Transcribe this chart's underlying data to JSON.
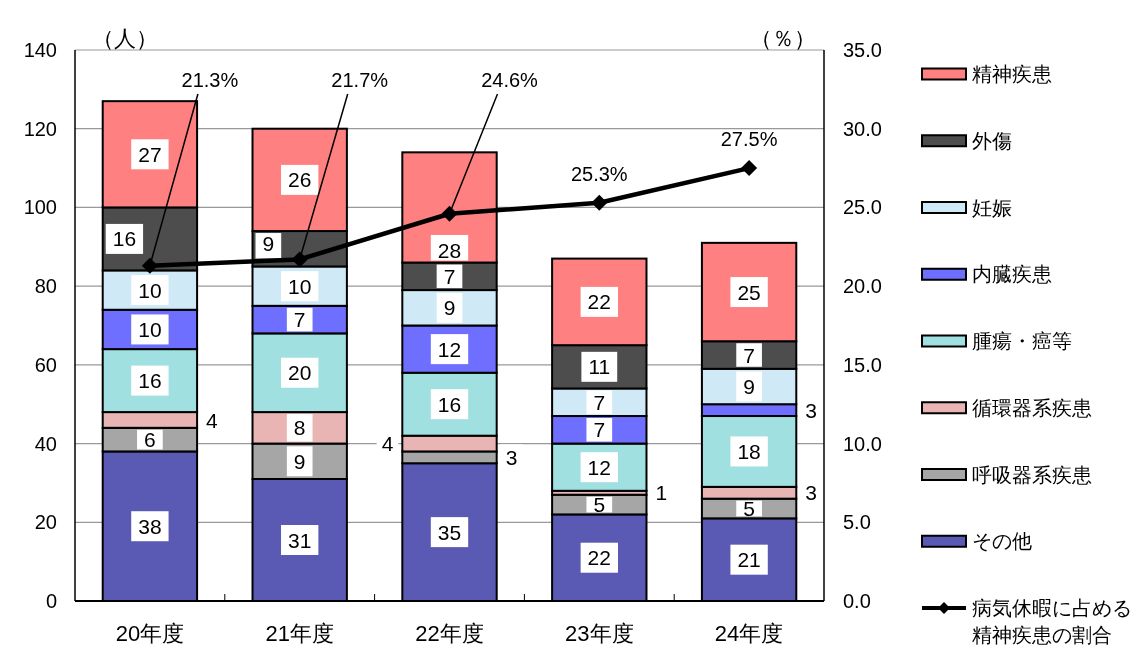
{
  "chart_data": {
    "type": "bar",
    "stacked": true,
    "categories": [
      "20年度",
      "21年度",
      "22年度",
      "23年度",
      "24年度"
    ],
    "ylabel": "（人）",
    "y2label": "（％）",
    "ylim": [
      0,
      140
    ],
    "yticks": [
      0,
      20,
      40,
      60,
      80,
      100,
      120,
      140
    ],
    "y2lim": [
      0,
      35
    ],
    "y2ticks": [
      {
        "value": 0,
        "label": "0.0"
      },
      {
        "value": 5,
        "label": "5.0"
      },
      {
        "value": 10,
        "label": "10.0"
      },
      {
        "value": 15,
        "label": "15.0"
      },
      {
        "value": 20,
        "label": "20.0"
      },
      {
        "value": 25,
        "label": "25.0"
      },
      {
        "value": 30,
        "label": "30.0"
      },
      {
        "value": 35,
        "label": "35.0"
      }
    ],
    "grid": "y",
    "legend": "right",
    "data_labels": true,
    "series": [
      {
        "name": "その他",
        "color": "#5a5ab4",
        "values": [
          38,
          31,
          35,
          22,
          21
        ]
      },
      {
        "name": "呼吸器系疾患",
        "color": "#a6a6a6",
        "values": [
          6,
          9,
          3,
          5,
          5
        ]
      },
      {
        "name": "循環器系疾患",
        "color": "#e8b4b4",
        "values": [
          4,
          8,
          4,
          1,
          3
        ]
      },
      {
        "name": "腫瘍・癌等",
        "color": "#a0e0e0",
        "values": [
          16,
          20,
          16,
          12,
          18
        ]
      },
      {
        "name": "内臓疾患",
        "color": "#6f6fff",
        "values": [
          10,
          7,
          12,
          7,
          3
        ]
      },
      {
        "name": "妊娠",
        "color": "#cfe9f7",
        "values": [
          10,
          10,
          9,
          7,
          9
        ]
      },
      {
        "name": "外傷",
        "color": "#4d4d4d",
        "values": [
          16,
          9,
          7,
          11,
          7
        ]
      },
      {
        "name": "精神疾患",
        "color": "#ff8080",
        "values": [
          27,
          26,
          28,
          22,
          25
        ]
      },
      {
        "name": "病気休暇に占める精神疾患の割合",
        "type": "line",
        "axis": "y2",
        "marker": "diamond",
        "color": "#000000",
        "values": [
          21.3,
          21.7,
          24.6,
          25.3,
          27.5
        ],
        "value_labels": [
          "21.3%",
          "21.7%",
          "24.6%",
          "25.3%",
          "27.5%"
        ]
      }
    ]
  }
}
